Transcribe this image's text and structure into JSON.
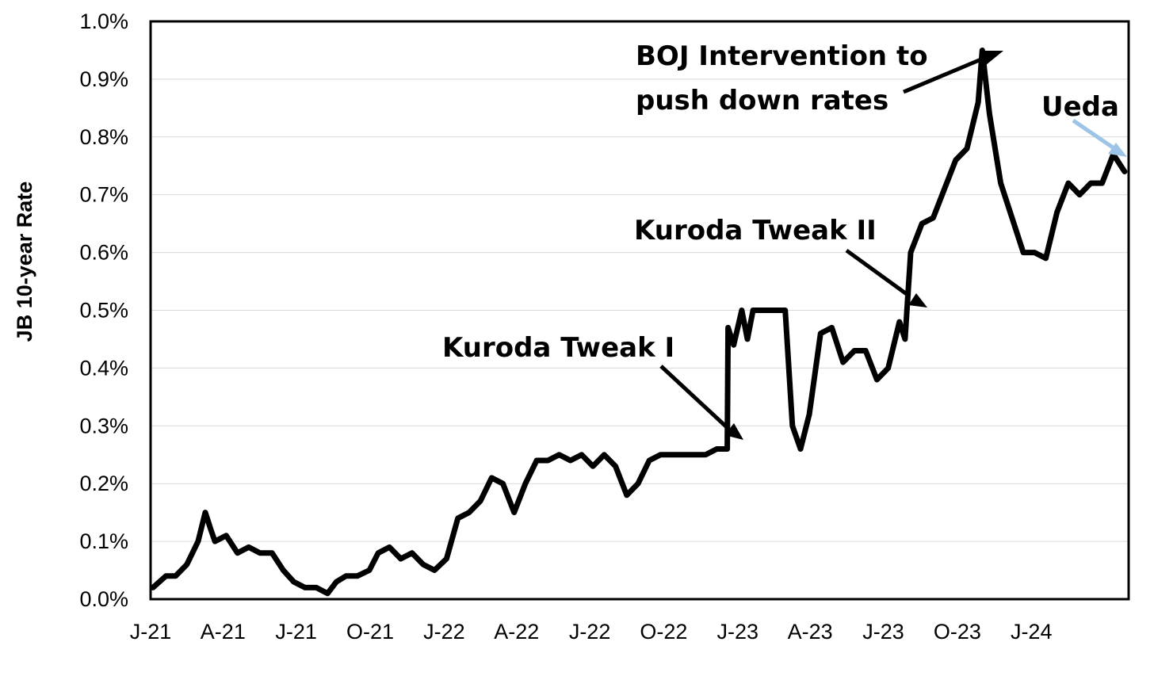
{
  "chart_data": {
    "type": "line",
    "title": "",
    "xlabel": "",
    "ylabel": "JB 10-year Rate",
    "ylim": [
      0,
      1.0
    ],
    "y_ticks": [
      "0.0%",
      "0.1%",
      "0.2%",
      "0.3%",
      "0.4%",
      "0.5%",
      "0.6%",
      "0.7%",
      "0.8%",
      "0.9%",
      "1.0%"
    ],
    "x_ticks": [
      "J-21",
      "A-21",
      "J-21",
      "O-21",
      "J-22",
      "A-22",
      "J-22",
      "O-22",
      "J-23",
      "A-23",
      "J-23",
      "O-23",
      "J-24"
    ],
    "grid": "horizontal",
    "legend": "none",
    "series": [
      {
        "color": "#000000",
        "x": [
          "2021-01-04",
          "2021-01-20",
          "2021-02-01",
          "2021-02-15",
          "2021-03-01",
          "2021-03-10",
          "2021-03-17",
          "2021-03-22",
          "2021-04-05",
          "2021-04-19",
          "2021-05-03",
          "2021-05-17",
          "2021-06-01",
          "2021-06-15",
          "2021-06-28",
          "2021-07-12",
          "2021-07-26",
          "2021-08-09",
          "2021-08-20",
          "2021-09-01",
          "2021-09-15",
          "2021-09-30",
          "2021-10-11",
          "2021-10-25",
          "2021-11-08",
          "2021-11-22",
          "2021-12-06",
          "2021-12-20",
          "2022-01-04",
          "2022-01-18",
          "2022-02-01",
          "2022-02-15",
          "2022-03-01",
          "2022-03-15",
          "2022-03-29",
          "2022-04-12",
          "2022-04-26",
          "2022-05-10",
          "2022-05-24",
          "2022-06-07",
          "2022-06-21",
          "2022-07-05",
          "2022-07-19",
          "2022-08-02",
          "2022-08-16",
          "2022-08-30",
          "2022-09-13",
          "2022-09-27",
          "2022-10-11",
          "2022-10-25",
          "2022-11-08",
          "2022-11-22",
          "2022-12-06",
          "2022-12-19",
          "2022-12-20",
          "2022-12-27",
          "2023-01-06",
          "2023-01-13",
          "2023-01-20",
          "2023-02-01",
          "2023-02-15",
          "2023-03-01",
          "2023-03-10",
          "2023-03-20",
          "2023-03-31",
          "2023-04-14",
          "2023-04-28",
          "2023-05-12",
          "2023-05-26",
          "2023-06-09",
          "2023-06-23",
          "2023-07-07",
          "2023-07-21",
          "2023-07-28",
          "2023-08-04",
          "2023-08-18",
          "2023-09-01",
          "2023-09-15",
          "2023-09-29",
          "2023-10-13",
          "2023-10-27",
          "2023-11-01",
          "2023-11-10",
          "2023-11-24",
          "2023-12-08",
          "2023-12-22",
          "2024-01-05",
          "2024-01-19",
          "2024-02-02",
          "2024-02-16",
          "2024-03-01",
          "2024-03-15",
          "2024-03-29",
          "2024-04-12",
          "2024-04-26"
        ],
        "values": [
          0.02,
          0.04,
          0.04,
          0.06,
          0.1,
          0.15,
          0.12,
          0.1,
          0.11,
          0.08,
          0.09,
          0.08,
          0.08,
          0.05,
          0.03,
          0.02,
          0.02,
          0.01,
          0.03,
          0.04,
          0.04,
          0.05,
          0.08,
          0.09,
          0.07,
          0.08,
          0.06,
          0.05,
          0.07,
          0.14,
          0.15,
          0.17,
          0.21,
          0.2,
          0.15,
          0.2,
          0.24,
          0.24,
          0.25,
          0.24,
          0.25,
          0.23,
          0.25,
          0.23,
          0.18,
          0.2,
          0.24,
          0.25,
          0.25,
          0.25,
          0.25,
          0.25,
          0.26,
          0.26,
          0.47,
          0.44,
          0.5,
          0.45,
          0.5,
          0.5,
          0.5,
          0.5,
          0.3,
          0.26,
          0.32,
          0.46,
          0.47,
          0.41,
          0.43,
          0.43,
          0.38,
          0.4,
          0.48,
          0.45,
          0.6,
          0.65,
          0.66,
          0.71,
          0.76,
          0.78,
          0.86,
          0.95,
          0.84,
          0.72,
          0.66,
          0.6,
          0.6,
          0.59,
          0.67,
          0.72,
          0.7,
          0.72,
          0.72,
          0.77,
          0.74
        ]
      }
    ],
    "annotations": [
      {
        "text": "Kuroda Tweak I",
        "date": "2022-12-20",
        "value": 0.26
      },
      {
        "lines": [
          "Kuroda Tweak II"
        ],
        "date": "2023-07-28",
        "value": 0.5
      },
      {
        "lines": [
          "BOJ  Intervention to",
          "push down rates"
        ],
        "date": "2023-11-01",
        "value": 0.95
      },
      {
        "lines": [
          "Ueda"
        ],
        "date": "2024-04-26",
        "value": 0.77
      }
    ]
  }
}
